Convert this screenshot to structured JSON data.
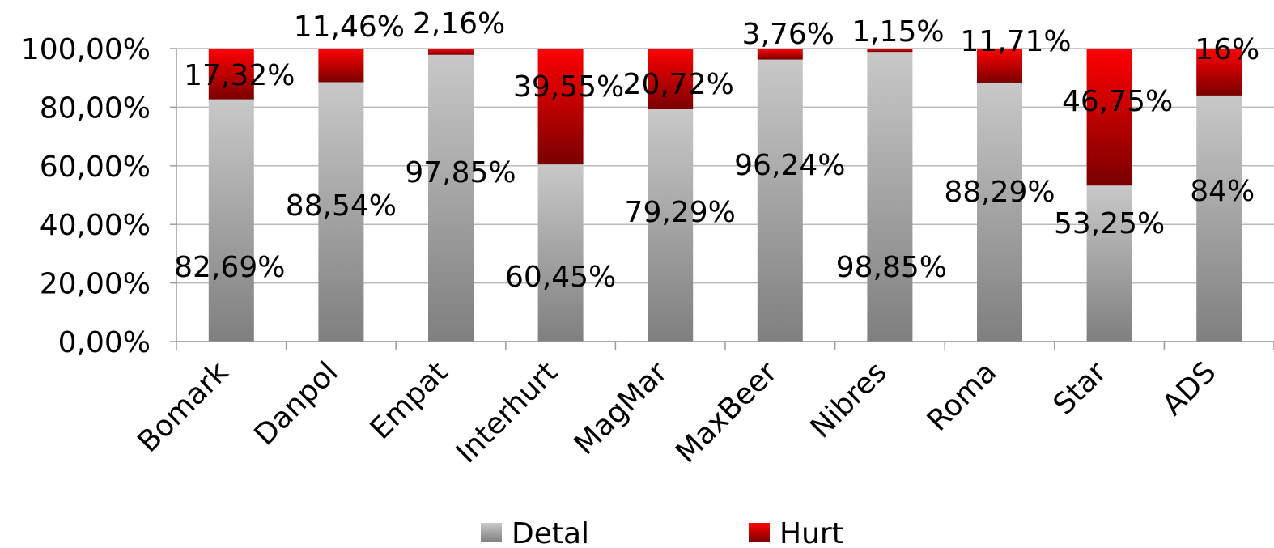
{
  "chart_data": {
    "type": "bar",
    "stacked": true,
    "categories": [
      "Bomark",
      "Danpol",
      "Empat",
      "Interhurt",
      "MagMar",
      "MaxBeer",
      "Nibres",
      "Roma",
      "Star",
      "ADS"
    ],
    "series": [
      {
        "name": "Detal",
        "values": [
          82.69,
          88.54,
          97.85,
          60.45,
          79.29,
          96.24,
          98.85,
          88.29,
          53.25,
          84
        ],
        "labels": [
          "82,69%",
          "88,54%",
          "97,85%",
          "60,45%",
          "79,29%",
          "96,24%",
          "98,85%",
          "88,29%",
          "53,25%",
          "84%"
        ],
        "color_light": "#c8c8c8",
        "color_dark": "#7f7f7f"
      },
      {
        "name": "Hurt",
        "values": [
          17.32,
          11.46,
          2.16,
          39.55,
          20.72,
          3.76,
          1.15,
          11.71,
          46.75,
          16
        ],
        "labels": [
          "17,32%",
          "11,46%",
          "2,16%",
          "39,55%",
          "20,72%",
          "3,76%",
          "1,15%",
          "11,71%",
          "46,75%",
          "16%"
        ],
        "color_light": "#ff0000",
        "color_dark": "#7a0000"
      }
    ],
    "ylim": [
      0,
      100
    ],
    "yticks": [
      0,
      20,
      40,
      60,
      80,
      100
    ],
    "ytick_labels": [
      "0,00%",
      "20,00%",
      "40,00%",
      "60,00%",
      "80,00%",
      "100,00%"
    ],
    "grid": true,
    "legend_position": "bottom",
    "title": "",
    "xlabel": "",
    "ylabel": ""
  }
}
